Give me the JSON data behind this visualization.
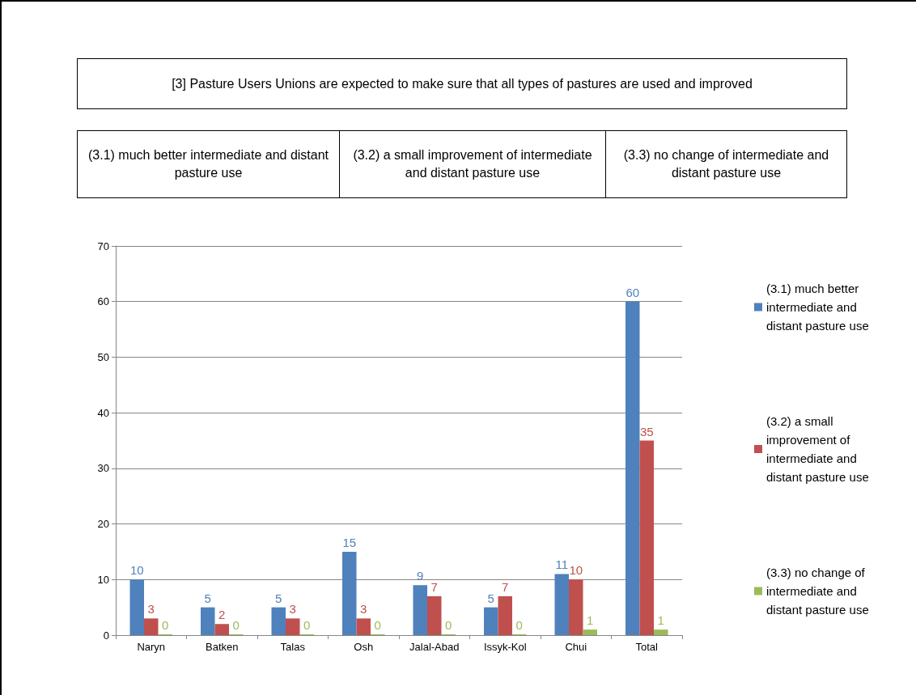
{
  "chart_data": {
    "type": "bar",
    "title": "[3] Pasture Users Unions are expected to make sure that all types of pastures are used and improved",
    "annotations": [
      "(3.1) much better intermediate and distant pasture use",
      "(3.2) a small improvement of intermediate and distant pasture use",
      "(3.3) no change of intermediate and distant pasture use"
    ],
    "categories": [
      "Naryn",
      "Batken",
      "Talas",
      "Osh",
      "Jalal-Abad",
      "Issyk-Kol",
      "Chui",
      "Total"
    ],
    "series": [
      {
        "name": "(3.1) much better intermediate and distant pasture use",
        "color": "#4f81bd",
        "values": [
          10,
          5,
          5,
          15,
          9,
          5,
          11,
          60
        ]
      },
      {
        "name": "(3.2) a small improvement of intermediate and distant pasture use",
        "color": "#c0504d",
        "values": [
          3,
          2,
          3,
          3,
          7,
          7,
          10,
          35
        ]
      },
      {
        "name": "(3.3) no change of intermediate and distant pasture use",
        "color": "#9bbb59",
        "values": [
          0,
          0,
          0,
          0,
          0,
          0,
          1,
          1
        ]
      }
    ],
    "ylim": [
      0,
      70
    ],
    "yticks": [
      0,
      10,
      20,
      30,
      40,
      50,
      60,
      70
    ],
    "grid": "y",
    "legend": "right",
    "data_labels": true
  }
}
